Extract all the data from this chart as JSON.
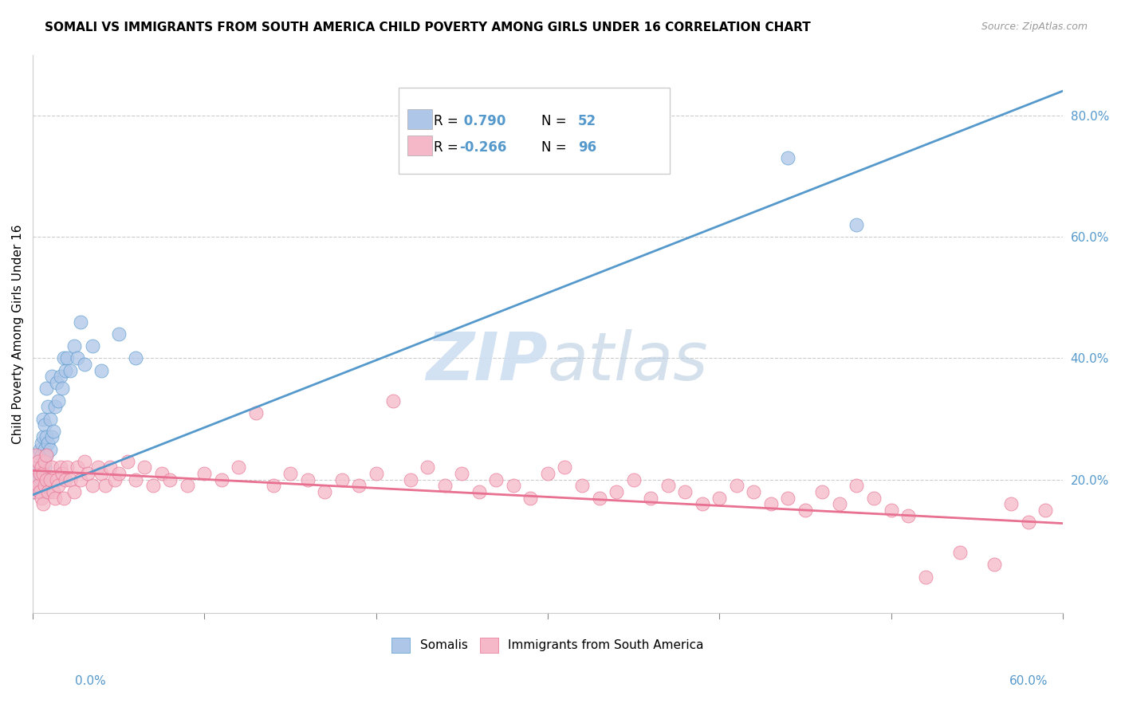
{
  "title": "SOMALI VS IMMIGRANTS FROM SOUTH AMERICA CHILD POVERTY AMONG GIRLS UNDER 16 CORRELATION CHART",
  "source": "Source: ZipAtlas.com",
  "ylabel": "Child Poverty Among Girls Under 16",
  "xlim": [
    0.0,
    0.6
  ],
  "ylim": [
    -0.02,
    0.9
  ],
  "yticks_right": [
    0.2,
    0.4,
    0.6,
    0.8
  ],
  "ytick_labels_right": [
    "20.0%",
    "40.0%",
    "60.0%",
    "80.0%"
  ],
  "watermark_zip": "ZIP",
  "watermark_atlas": "atlas",
  "color_somali": "#aec6e8",
  "color_sa": "#f4b8c8",
  "color_line_somali": "#5599cc",
  "color_line_sa": "#e87090",
  "somali_line_x": [
    0.0,
    0.6
  ],
  "somali_line_y": [
    0.175,
    0.84
  ],
  "sa_line_x": [
    0.0,
    0.6
  ],
  "sa_line_y": [
    0.215,
    0.128
  ],
  "somali_scatter_x": [
    0.001,
    0.001,
    0.002,
    0.002,
    0.002,
    0.003,
    0.003,
    0.003,
    0.004,
    0.004,
    0.004,
    0.005,
    0.005,
    0.005,
    0.005,
    0.005,
    0.006,
    0.006,
    0.006,
    0.006,
    0.007,
    0.007,
    0.007,
    0.008,
    0.008,
    0.008,
    0.009,
    0.009,
    0.01,
    0.01,
    0.011,
    0.011,
    0.012,
    0.013,
    0.014,
    0.015,
    0.016,
    0.017,
    0.018,
    0.019,
    0.02,
    0.022,
    0.024,
    0.026,
    0.028,
    0.03,
    0.035,
    0.04,
    0.05,
    0.06,
    0.44,
    0.48
  ],
  "somali_scatter_y": [
    0.18,
    0.2,
    0.19,
    0.21,
    0.22,
    0.2,
    0.22,
    0.24,
    0.19,
    0.22,
    0.25,
    0.18,
    0.2,
    0.22,
    0.24,
    0.26,
    0.21,
    0.23,
    0.27,
    0.3,
    0.22,
    0.25,
    0.29,
    0.24,
    0.27,
    0.35,
    0.26,
    0.32,
    0.25,
    0.3,
    0.27,
    0.37,
    0.28,
    0.32,
    0.36,
    0.33,
    0.37,
    0.35,
    0.4,
    0.38,
    0.4,
    0.38,
    0.42,
    0.4,
    0.46,
    0.39,
    0.42,
    0.38,
    0.44,
    0.4,
    0.73,
    0.62
  ],
  "sa_scatter_x": [
    0.001,
    0.001,
    0.002,
    0.002,
    0.003,
    0.003,
    0.004,
    0.004,
    0.005,
    0.005,
    0.006,
    0.006,
    0.007,
    0.007,
    0.008,
    0.008,
    0.009,
    0.01,
    0.011,
    0.012,
    0.013,
    0.014,
    0.015,
    0.016,
    0.017,
    0.018,
    0.019,
    0.02,
    0.022,
    0.024,
    0.026,
    0.028,
    0.03,
    0.032,
    0.035,
    0.038,
    0.04,
    0.042,
    0.045,
    0.048,
    0.05,
    0.055,
    0.06,
    0.065,
    0.07,
    0.075,
    0.08,
    0.09,
    0.1,
    0.11,
    0.12,
    0.13,
    0.14,
    0.15,
    0.16,
    0.17,
    0.18,
    0.19,
    0.2,
    0.21,
    0.22,
    0.23,
    0.24,
    0.25,
    0.26,
    0.27,
    0.28,
    0.29,
    0.3,
    0.31,
    0.32,
    0.33,
    0.34,
    0.35,
    0.36,
    0.37,
    0.38,
    0.39,
    0.4,
    0.41,
    0.42,
    0.43,
    0.44,
    0.45,
    0.46,
    0.47,
    0.48,
    0.49,
    0.5,
    0.51,
    0.52,
    0.54,
    0.56,
    0.57,
    0.58,
    0.59
  ],
  "sa_scatter_y": [
    0.18,
    0.22,
    0.2,
    0.24,
    0.19,
    0.23,
    0.18,
    0.21,
    0.17,
    0.22,
    0.16,
    0.21,
    0.19,
    0.23,
    0.2,
    0.24,
    0.18,
    0.2,
    0.22,
    0.18,
    0.17,
    0.2,
    0.19,
    0.22,
    0.21,
    0.17,
    0.2,
    0.22,
    0.2,
    0.18,
    0.22,
    0.2,
    0.23,
    0.21,
    0.19,
    0.22,
    0.21,
    0.19,
    0.22,
    0.2,
    0.21,
    0.23,
    0.2,
    0.22,
    0.19,
    0.21,
    0.2,
    0.19,
    0.21,
    0.2,
    0.22,
    0.31,
    0.19,
    0.21,
    0.2,
    0.18,
    0.2,
    0.19,
    0.21,
    0.33,
    0.2,
    0.22,
    0.19,
    0.21,
    0.18,
    0.2,
    0.19,
    0.17,
    0.21,
    0.22,
    0.19,
    0.17,
    0.18,
    0.2,
    0.17,
    0.19,
    0.18,
    0.16,
    0.17,
    0.19,
    0.18,
    0.16,
    0.17,
    0.15,
    0.18,
    0.16,
    0.19,
    0.17,
    0.15,
    0.14,
    0.04,
    0.08,
    0.06,
    0.16,
    0.13,
    0.15
  ]
}
